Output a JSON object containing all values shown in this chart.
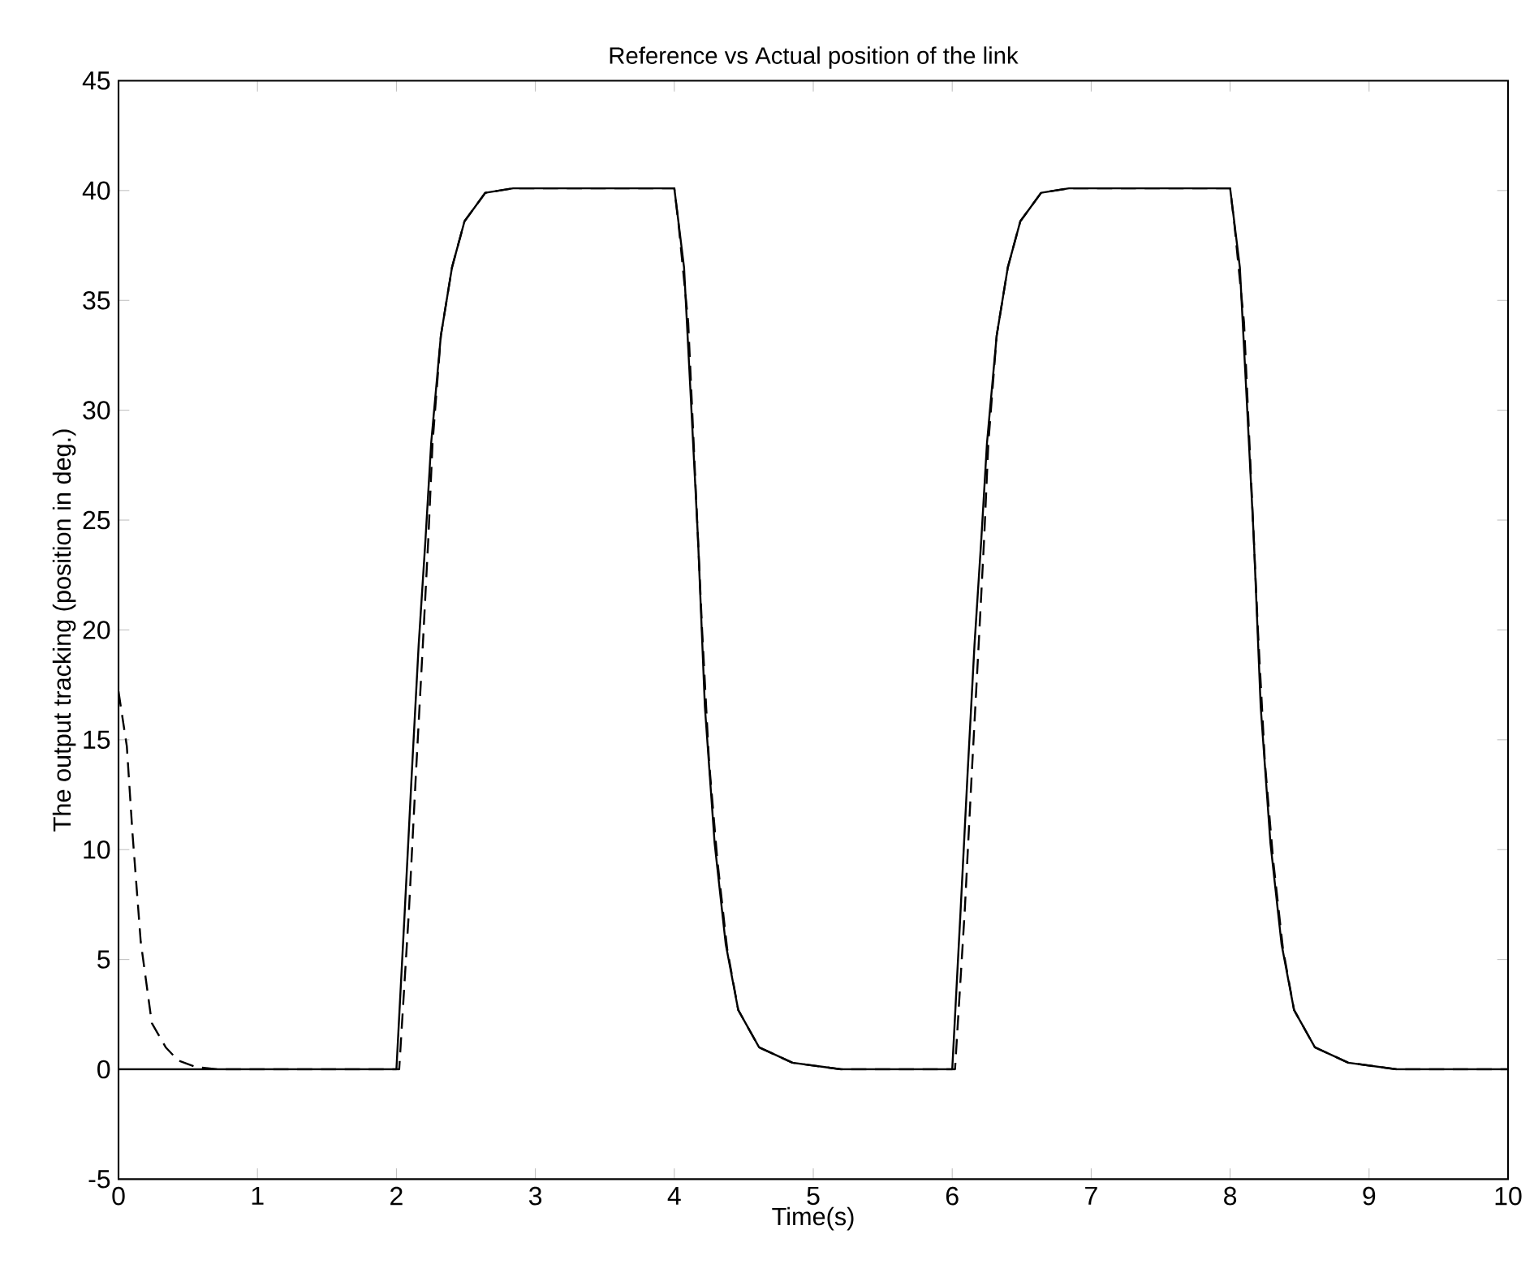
{
  "chart_data": {
    "type": "line",
    "title": "Reference vs Actual position of the link",
    "xlabel": "Time(s)",
    "ylabel": "The output tracking (position in deg.)",
    "xlim": [
      0,
      10
    ],
    "ylim": [
      -5,
      45
    ],
    "xticks": [
      0,
      1,
      2,
      3,
      4,
      5,
      6,
      7,
      8,
      9,
      10
    ],
    "yticks": [
      -5,
      0,
      5,
      10,
      15,
      20,
      25,
      30,
      35,
      40,
      45
    ],
    "series": [
      {
        "color": "#000000",
        "line_style": "solid",
        "x": [
          0,
          2,
          2.06,
          2.11,
          2.16,
          2.21,
          2.25,
          2.32,
          2.4,
          2.49,
          2.64,
          2.84,
          4,
          4.07,
          4.12,
          4.17,
          4.22,
          4.29,
          4.37,
          4.46,
          4.61,
          4.85,
          5.2,
          6,
          6.06,
          6.11,
          6.16,
          6.21,
          6.25,
          6.32,
          6.4,
          6.49,
          6.64,
          6.84,
          8,
          8.07,
          8.12,
          8.17,
          8.22,
          8.29,
          8.37,
          8.46,
          8.61,
          8.85,
          9.2,
          10
        ],
        "values": [
          0,
          0,
          7.2,
          13.4,
          19.3,
          24.2,
          28.5,
          33.4,
          36.5,
          38.6,
          39.9,
          40.1,
          40.1,
          36.5,
          30.4,
          24.2,
          16.5,
          10.3,
          5.7,
          2.7,
          1.0,
          0.3,
          0,
          0,
          7.2,
          13.4,
          19.3,
          24.2,
          28.5,
          33.4,
          36.5,
          38.6,
          39.9,
          40.1,
          40.1,
          36.5,
          30.4,
          24.2,
          16.5,
          10.3,
          5.7,
          2.7,
          1.0,
          0.3,
          0,
          0
        ]
      },
      {
        "color": "#000000",
        "line_style": "dashed",
        "x": [
          0,
          0.06,
          0.1,
          0.16,
          0.24,
          0.34,
          0.43,
          0.56,
          0.72,
          2.02,
          2.09,
          2.14,
          2.19,
          2.23,
          2.26,
          2.32,
          2.4,
          2.49,
          2.64,
          2.84,
          4,
          4.03,
          4.1,
          4.15,
          4.2,
          4.25,
          4.31,
          4.38,
          4.46,
          4.61,
          4.85,
          5.2,
          6.02,
          6.09,
          6.14,
          6.19,
          6.23,
          6.26,
          6.32,
          6.4,
          6.49,
          6.64,
          6.84,
          8,
          8.03,
          8.1,
          8.15,
          8.2,
          8.25,
          8.31,
          8.38,
          8.46,
          8.61,
          8.85,
          9.2,
          10
        ],
        "values": [
          17.2,
          14.7,
          10.8,
          5.8,
          2.1,
          1.0,
          0.4,
          0.1,
          0,
          0,
          7.2,
          13.4,
          19.3,
          24.2,
          28.5,
          33.4,
          36.5,
          38.6,
          39.9,
          40.1,
          40.1,
          38.5,
          34,
          27,
          20,
          14,
          9.5,
          5.5,
          2.7,
          1.0,
          0.3,
          0,
          0,
          7.2,
          13.4,
          19.3,
          24.2,
          28.5,
          33.4,
          36.5,
          38.6,
          39.9,
          40.1,
          40.1,
          38.5,
          34,
          27,
          20,
          14,
          9.5,
          5.5,
          2.7,
          1.0,
          0.3,
          0,
          0
        ]
      }
    ]
  }
}
